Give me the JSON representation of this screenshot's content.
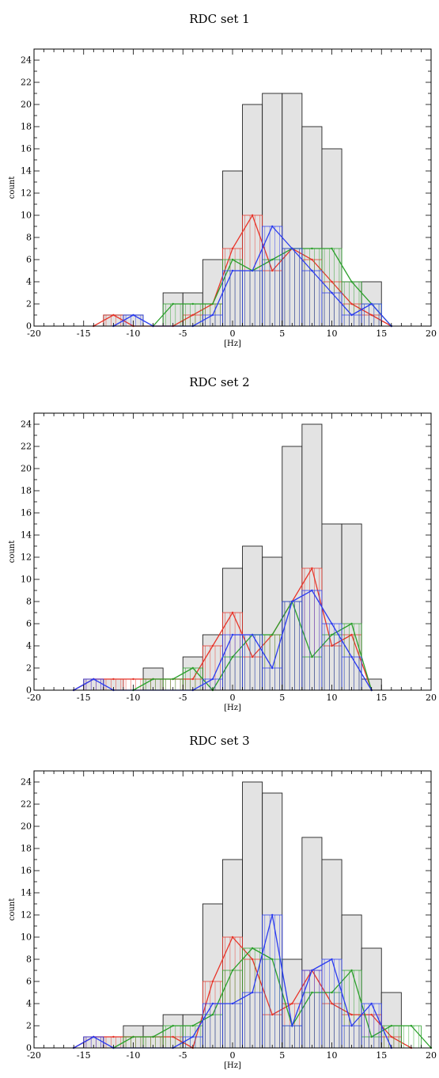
{
  "chart_data": [
    {
      "type": "bar",
      "title": "RDC set 1",
      "xlabel": "[Hz]",
      "ylabel": "count",
      "xlim": [
        -20,
        20
      ],
      "ylim": [
        0,
        25
      ],
      "x_ticks": [
        -20,
        -15,
        -10,
        -5,
        0,
        5,
        10,
        15,
        20
      ],
      "y_ticks": [
        0,
        2,
        4,
        6,
        8,
        10,
        12,
        14,
        16,
        18,
        20,
        22,
        24
      ],
      "grid": false,
      "bin_width": 2,
      "histogram": {
        "bin_centers": [
          -12,
          -10,
          -6,
          -4,
          -2,
          0,
          2,
          4,
          6,
          8,
          10,
          12,
          14
        ],
        "values": [
          1,
          1,
          3,
          3,
          6,
          14,
          20,
          21,
          21,
          18,
          16,
          4,
          4
        ]
      },
      "series": [
        {
          "color": "#e8352a",
          "x": [
            -14,
            -12,
            -10,
            -8,
            -6,
            -4,
            -2,
            0,
            2,
            4,
            6,
            8,
            10,
            12,
            14,
            16
          ],
          "values": [
            0,
            1,
            0,
            0,
            0,
            1,
            2,
            7,
            10,
            5,
            7,
            6,
            4,
            2,
            1,
            0
          ]
        },
        {
          "color": "#2aa02a",
          "x": [
            -8,
            -6,
            -4,
            -2,
            0,
            2,
            4,
            6,
            8,
            10,
            12,
            14,
            16
          ],
          "values": [
            0,
            2,
            2,
            2,
            6,
            5,
            6,
            7,
            7,
            7,
            4,
            2,
            0
          ]
        },
        {
          "color": "#2a3bf0",
          "x": [
            -12,
            -10,
            -8,
            -4,
            -2,
            0,
            2,
            4,
            6,
            8,
            10,
            12,
            14,
            16
          ],
          "values": [
            0,
            1,
            0,
            0,
            1,
            5,
            5,
            9,
            7,
            5,
            3,
            1,
            2,
            0
          ]
        }
      ]
    },
    {
      "type": "bar",
      "title": "RDC set 2",
      "xlabel": "[Hz]",
      "ylabel": "count",
      "xlim": [
        -20,
        20
      ],
      "ylim": [
        0,
        25
      ],
      "x_ticks": [
        -20,
        -15,
        -10,
        -5,
        0,
        5,
        10,
        15,
        20
      ],
      "y_ticks": [
        0,
        2,
        4,
        6,
        8,
        10,
        12,
        14,
        16,
        18,
        20,
        22,
        24
      ],
      "grid": false,
      "bin_width": 2,
      "histogram": {
        "bin_centers": [
          -14,
          -12,
          -8,
          -4,
          -2,
          0,
          2,
          4,
          6,
          8,
          10,
          12,
          14
        ],
        "values": [
          1,
          1,
          2,
          3,
          5,
          11,
          13,
          12,
          22,
          24,
          15,
          15,
          1
        ]
      },
      "series": [
        {
          "color": "#e8352a",
          "x": [
            -16,
            -14,
            -12,
            -10,
            -8,
            -6,
            -4,
            -2,
            0,
            2,
            4,
            6,
            8,
            10,
            12,
            14
          ],
          "values": [
            0,
            1,
            1,
            1,
            1,
            1,
            1,
            4,
            7,
            3,
            5,
            8,
            11,
            4,
            5,
            0
          ]
        },
        {
          "color": "#2aa02a",
          "x": [
            -10,
            -8,
            -6,
            -4,
            -2,
            0,
            2,
            4,
            6,
            8,
            10,
            12,
            14
          ],
          "values": [
            0,
            1,
            1,
            2,
            0,
            3,
            5,
            5,
            8,
            3,
            5,
            6,
            0
          ]
        },
        {
          "color": "#2a3bf0",
          "x": [
            -16,
            -14,
            -12,
            -4,
            -2,
            0,
            2,
            4,
            6,
            8,
            10,
            12,
            14
          ],
          "values": [
            0,
            1,
            0,
            0,
            1,
            5,
            5,
            2,
            8,
            9,
            6,
            3,
            0
          ]
        }
      ]
    },
    {
      "type": "bar",
      "title": "RDC set 3",
      "xlabel": "[Hz]",
      "ylabel": "count",
      "xlim": [
        -20,
        20
      ],
      "ylim": [
        0,
        25
      ],
      "x_ticks": [
        -20,
        -15,
        -10,
        -5,
        0,
        5,
        10,
        15,
        20
      ],
      "y_ticks": [
        0,
        2,
        4,
        6,
        8,
        10,
        12,
        14,
        16,
        18,
        20,
        22,
        24
      ],
      "grid": false,
      "bin_width": 2,
      "histogram": {
        "bin_centers": [
          -14,
          -12,
          -10,
          -8,
          -6,
          -4,
          -2,
          0,
          2,
          4,
          6,
          8,
          10,
          12,
          14,
          16
        ],
        "values": [
          1,
          1,
          2,
          2,
          3,
          3,
          13,
          17,
          24,
          23,
          8,
          19,
          17,
          12,
          9,
          5
        ]
      },
      "series": [
        {
          "color": "#e8352a",
          "x": [
            -16,
            -14,
            -12,
            -10,
            -8,
            -6,
            -4,
            -2,
            0,
            2,
            4,
            6,
            8,
            10,
            12,
            14,
            16,
            18
          ],
          "values": [
            0,
            1,
            1,
            1,
            1,
            1,
            0,
            6,
            10,
            8,
            3,
            4,
            7,
            4,
            3,
            3,
            1,
            0
          ]
        },
        {
          "color": "#2aa02a",
          "x": [
            -12,
            -10,
            -8,
            -6,
            -4,
            -2,
            0,
            2,
            4,
            6,
            8,
            10,
            12,
            14,
            16,
            18,
            20
          ],
          "values": [
            0,
            1,
            1,
            2,
            2,
            3,
            7,
            9,
            8,
            2,
            5,
            5,
            7,
            1,
            2,
            2,
            0
          ]
        },
        {
          "color": "#2a3bf0",
          "x": [
            -16,
            -14,
            -12,
            -6,
            -4,
            -2,
            0,
            2,
            4,
            6,
            8,
            10,
            12,
            14,
            16
          ],
          "values": [
            0,
            1,
            0,
            0,
            1,
            4,
            4,
            5,
            12,
            2,
            7,
            8,
            2,
            4,
            0
          ]
        }
      ]
    }
  ]
}
